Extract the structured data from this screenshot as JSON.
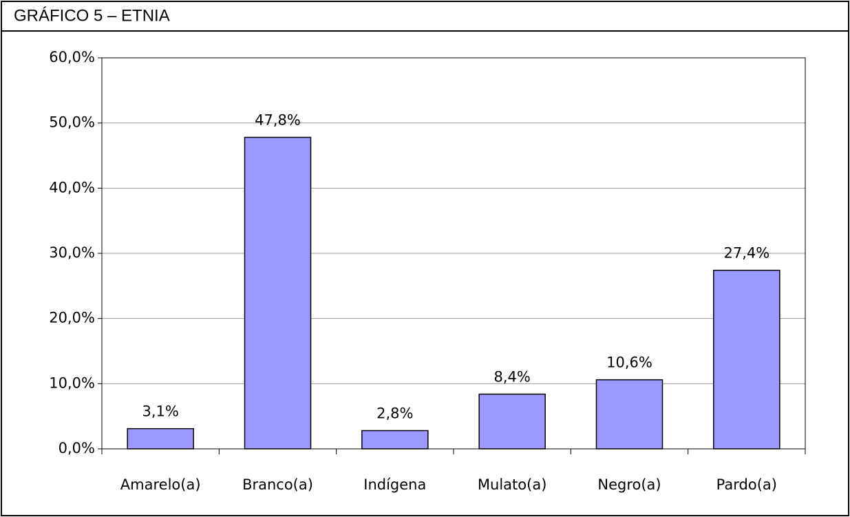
{
  "chart_data": {
    "type": "bar",
    "title": "GRÁFICO 5 – ETNIA",
    "categories": [
      "Amarelo(a)",
      "Branco(a)",
      "Indígena",
      "Mulato(a)",
      "Negro(a)",
      "Pardo(a)"
    ],
    "values": [
      3.1,
      47.8,
      2.8,
      8.4,
      10.6,
      27.4
    ],
    "value_labels": [
      "3,1%",
      "47,8%",
      "2,8%",
      "8,4%",
      "10,6%",
      "27,4%"
    ],
    "color": "#9999ff",
    "ylim": [
      0,
      60
    ],
    "yticks": [
      {
        "value": 0,
        "label": "0,0%"
      },
      {
        "value": 10,
        "label": "10,0%"
      },
      {
        "value": 20,
        "label": "20,0%"
      },
      {
        "value": 30,
        "label": "30,0%"
      },
      {
        "value": 40,
        "label": "40,0%"
      },
      {
        "value": 50,
        "label": "50,0%"
      },
      {
        "value": 60,
        "label": "60,0%"
      }
    ],
    "grid": true
  }
}
